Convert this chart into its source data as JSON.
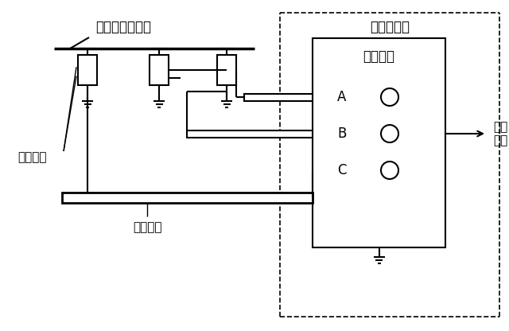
{
  "bg_color": "#ffffff",
  "line_color": "#000000",
  "title_left": "一次设备带电体",
  "title_right": "开关控制柜",
  "label_sensing": "感应单元",
  "label_cable": "屏蔽电缆",
  "label_display": "显示单元",
  "label_interlock": "联锁\n输出",
  "phases": [
    "A",
    "B",
    "C"
  ],
  "fig_width": 6.4,
  "fig_height": 4.16,
  "dpi": 100
}
